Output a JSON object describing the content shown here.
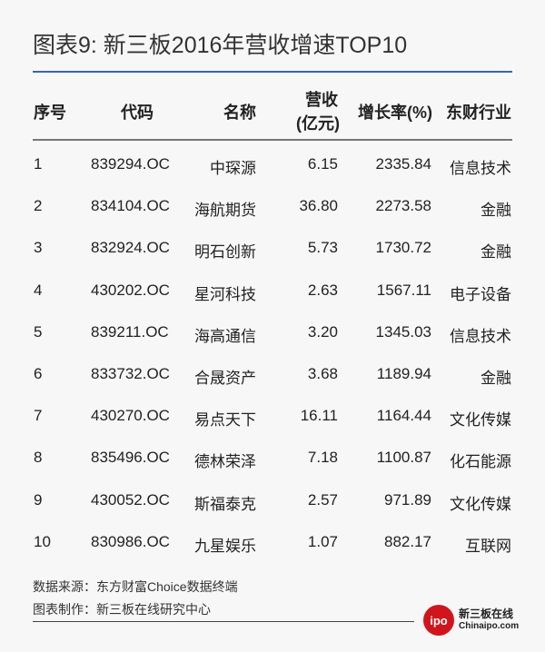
{
  "title": "图表9: 新三板2016年营收增速TOP10",
  "table": {
    "headers": [
      "序号",
      "代码",
      "名称",
      "营收",
      "(亿元)",
      "增长率(%)",
      "东财行业"
    ],
    "rows": [
      [
        "1",
        "839294.OC",
        "中琛源",
        "6.15",
        "2335.84",
        "信息技术"
      ],
      [
        "2",
        "834104.OC",
        "海航期货",
        "36.80",
        "2273.58",
        "金融"
      ],
      [
        "3",
        "832924.OC",
        "明石创新",
        "5.73",
        "1730.72",
        "金融"
      ],
      [
        "4",
        "430202.OC",
        "星河科技",
        "2.63",
        "1567.11",
        "电子设备"
      ],
      [
        "5",
        "839211.OC",
        "海高通信",
        "3.20",
        "1345.03",
        "信息技术"
      ],
      [
        "6",
        "833732.OC",
        "合晟资产",
        "3.68",
        "1189.94",
        "金融"
      ],
      [
        "7",
        "430270.OC",
        "易点天下",
        "16.11",
        "1164.44",
        "文化传媒"
      ],
      [
        "8",
        "835496.OC",
        "德林荣泽",
        "7.18",
        "1100.87",
        "化石能源"
      ],
      [
        "9",
        "430052.OC",
        "斯福泰克",
        "2.57",
        "971.89",
        "文化传媒"
      ],
      [
        "10",
        "830986.OC",
        "九星娱乐",
        "1.07",
        "882.17",
        "互联网"
      ]
    ]
  },
  "footer": {
    "source": "数据来源：东方财富Choice数据终端",
    "maker": "图表制作：新三板在线研究中心"
  },
  "logo": {
    "mark": "ipo",
    "cn": "新三板在线",
    "en": "Chinaipo.com"
  },
  "colors": {
    "accent_line": "#3a66a5",
    "logo_red": "#d0161c"
  }
}
